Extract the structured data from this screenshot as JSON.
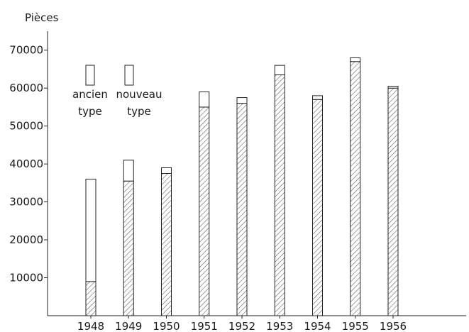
{
  "chart_data": {
    "type": "bar",
    "stacked": true,
    "ylabel": "Pièces",
    "ylim": [
      0,
      75000
    ],
    "yticks": [
      10000,
      20000,
      30000,
      40000,
      50000,
      60000,
      70000
    ],
    "ytick_labels": [
      "10000",
      "20000",
      "30000",
      "40000",
      "50000",
      "60000",
      "70000"
    ],
    "categories": [
      "1948",
      "1949",
      "1950",
      "1951",
      "1952",
      "1953",
      "1954",
      "1955",
      "1956"
    ],
    "series": [
      {
        "name": "nouveau type",
        "pattern": "hatched",
        "values": [
          9000,
          35500,
          37500,
          55000,
          56000,
          63500,
          57000,
          67000,
          60000
        ]
      },
      {
        "name": "ancien type",
        "pattern": "plain",
        "values": [
          27000,
          5500,
          1500,
          4000,
          1500,
          2500,
          1000,
          1000,
          500
        ]
      }
    ],
    "legend": {
      "placement": "top-left",
      "items": [
        {
          "line1": "ancien",
          "line2": "type",
          "pattern": "plain"
        },
        {
          "line1": "nouveau",
          "line2": "type",
          "pattern": "hatched"
        }
      ]
    },
    "grid": false
  }
}
